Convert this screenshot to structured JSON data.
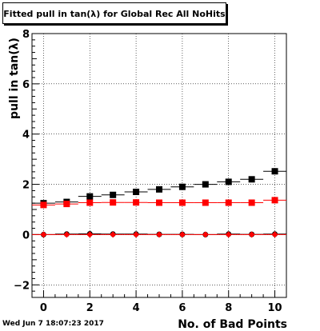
{
  "chart_data": {
    "type": "scatter",
    "title": "Fitted pull in tan(λ) for Global Rec All NoHits",
    "xlabel": "No. of Bad Points",
    "ylabel": "pull in tan(λ)",
    "xlim": [
      -0.5,
      10.5
    ],
    "ylim": [
      -2.5,
      8.0
    ],
    "x_ticks": [
      0,
      2,
      4,
      6,
      8,
      10
    ],
    "y_ticks": [
      -2,
      0,
      2,
      4,
      6,
      8
    ],
    "grid": true,
    "x": [
      0,
      1,
      2,
      3,
      4,
      5,
      6,
      7,
      8,
      9,
      10
    ],
    "series": [
      {
        "marker": "square",
        "color": "#000000",
        "values": [
          1.25,
          1.3,
          1.52,
          1.58,
          1.7,
          1.8,
          1.9,
          2.0,
          2.1,
          2.2,
          2.52
        ]
      },
      {
        "marker": "square",
        "color": "#ff0000",
        "values": [
          1.18,
          1.22,
          1.27,
          1.28,
          1.28,
          1.27,
          1.27,
          1.27,
          1.27,
          1.27,
          1.37
        ]
      },
      {
        "marker": "circle",
        "color": "#000000",
        "values": [
          0.0,
          0.02,
          0.03,
          0.02,
          0.02,
          0.01,
          0.01,
          0.0,
          0.02,
          0.01,
          0.02
        ]
      },
      {
        "marker": "diamond",
        "color": "#ff0000",
        "values": [
          0.0,
          0.0,
          0.0,
          0.0,
          0.0,
          0.0,
          0.0,
          0.0,
          0.0,
          0.0,
          0.0
        ]
      }
    ]
  },
  "footer": {
    "timestamp": "Wed Jun  7 18:07:23 2017"
  }
}
